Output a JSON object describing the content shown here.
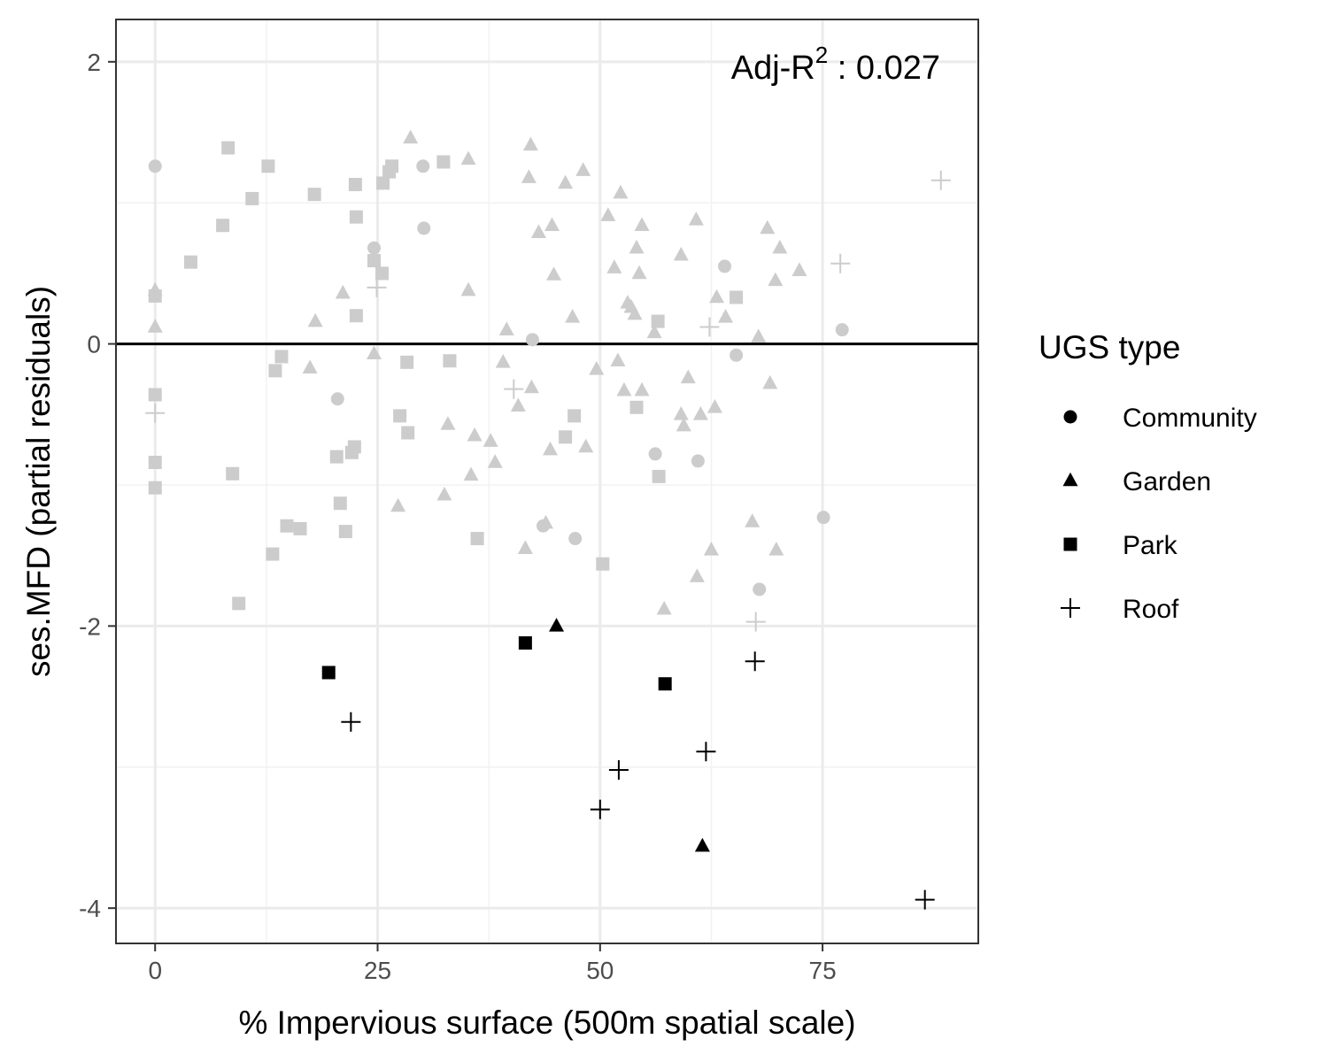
{
  "chart_data": {
    "type": "scatter",
    "xlabel": "% Impervious surface (500m spatial scale)",
    "ylabel": "ses.MFD (partial residuals)",
    "xlim": [
      -4.4,
      92.5
    ],
    "ylim": [
      -4.25,
      2.3
    ],
    "xticks": [
      0,
      25,
      50,
      75
    ],
    "yticks": [
      -4,
      -2,
      0,
      2
    ],
    "grid": true,
    "hline": 0,
    "annotation": {
      "prefix": "Adj-R",
      "sup": "2",
      "suffix": " : 0.027"
    },
    "legend": {
      "title": "UGS type",
      "position": "right",
      "entries": [
        {
          "label": "Community",
          "shape": "circle"
        },
        {
          "label": "Garden",
          "shape": "triangle"
        },
        {
          "label": "Park",
          "shape": "square"
        },
        {
          "label": "Roof",
          "shape": "cross"
        }
      ]
    },
    "colors": {
      "highlighted": "#000000",
      "background": "#cccccc"
    },
    "series": [
      {
        "name": "Community",
        "shape": "circle",
        "points": [
          {
            "x": 0,
            "y": 1.26,
            "hl": false
          },
          {
            "x": 24.6,
            "y": 0.68,
            "hl": false
          },
          {
            "x": 30.1,
            "y": 1.26,
            "hl": false
          },
          {
            "x": 30.2,
            "y": 0.82,
            "hl": false
          },
          {
            "x": 42.4,
            "y": 0.03,
            "hl": false
          },
          {
            "x": 20.5,
            "y": -0.39,
            "hl": false
          },
          {
            "x": 43.6,
            "y": -1.29,
            "hl": false
          },
          {
            "x": 47.2,
            "y": -1.38,
            "hl": false
          },
          {
            "x": 56.2,
            "y": -0.78,
            "hl": false
          },
          {
            "x": 61.0,
            "y": -0.83,
            "hl": false
          },
          {
            "x": 64.0,
            "y": 0.55,
            "hl": false
          },
          {
            "x": 65.3,
            "y": -0.08,
            "hl": false
          },
          {
            "x": 67.9,
            "y": -1.74,
            "hl": false
          },
          {
            "x": 75.1,
            "y": -1.23,
            "hl": false
          },
          {
            "x": 77.2,
            "y": 0.1,
            "hl": false
          }
        ]
      },
      {
        "name": "Garden",
        "shape": "triangle",
        "points": [
          {
            "x": 0,
            "y": 0.38,
            "hl": false
          },
          {
            "x": 0,
            "y": 0.12,
            "hl": false
          },
          {
            "x": 17.4,
            "y": -0.17,
            "hl": false
          },
          {
            "x": 18.0,
            "y": 0.16,
            "hl": false
          },
          {
            "x": 21.1,
            "y": 0.36,
            "hl": false
          },
          {
            "x": 24.6,
            "y": -0.07,
            "hl": false
          },
          {
            "x": 27.3,
            "y": -1.15,
            "hl": false
          },
          {
            "x": 28.7,
            "y": 1.46,
            "hl": false
          },
          {
            "x": 32.5,
            "y": -1.07,
            "hl": false
          },
          {
            "x": 32.9,
            "y": -0.57,
            "hl": false
          },
          {
            "x": 35.2,
            "y": 1.31,
            "hl": false
          },
          {
            "x": 35.2,
            "y": 0.38,
            "hl": false
          },
          {
            "x": 35.5,
            "y": -0.93,
            "hl": false
          },
          {
            "x": 35.9,
            "y": -0.65,
            "hl": false
          },
          {
            "x": 37.7,
            "y": -0.69,
            "hl": false
          },
          {
            "x": 38.2,
            "y": -0.84,
            "hl": false
          },
          {
            "x": 39.1,
            "y": -0.13,
            "hl": false
          },
          {
            "x": 39.5,
            "y": 0.1,
            "hl": false
          },
          {
            "x": 40.8,
            "y": -0.44,
            "hl": false
          },
          {
            "x": 41.6,
            "y": -1.45,
            "hl": false
          },
          {
            "x": 42.0,
            "y": 1.18,
            "hl": false
          },
          {
            "x": 42.2,
            "y": 1.41,
            "hl": false
          },
          {
            "x": 42.3,
            "y": -0.31,
            "hl": false
          },
          {
            "x": 43.1,
            "y": 0.79,
            "hl": false
          },
          {
            "x": 43.9,
            "y": -1.27,
            "hl": false
          },
          {
            "x": 44.4,
            "y": -0.75,
            "hl": false
          },
          {
            "x": 44.6,
            "y": 0.84,
            "hl": false
          },
          {
            "x": 44.8,
            "y": 0.49,
            "hl": false
          },
          {
            "x": 46.1,
            "y": 1.14,
            "hl": false
          },
          {
            "x": 46.9,
            "y": 0.19,
            "hl": false
          },
          {
            "x": 48.1,
            "y": 1.23,
            "hl": false
          },
          {
            "x": 48.4,
            "y": -0.73,
            "hl": false
          },
          {
            "x": 49.6,
            "y": -0.18,
            "hl": false
          },
          {
            "x": 50.9,
            "y": 0.91,
            "hl": false
          },
          {
            "x": 51.6,
            "y": 0.54,
            "hl": false
          },
          {
            "x": 52.0,
            "y": -0.12,
            "hl": false
          },
          {
            "x": 52.3,
            "y": 1.07,
            "hl": false
          },
          {
            "x": 52.7,
            "y": -0.33,
            "hl": false
          },
          {
            "x": 53.1,
            "y": 0.29,
            "hl": false
          },
          {
            "x": 53.5,
            "y": 0.26,
            "hl": false
          },
          {
            "x": 53.9,
            "y": 0.21,
            "hl": false
          },
          {
            "x": 54.1,
            "y": 0.68,
            "hl": false
          },
          {
            "x": 54.4,
            "y": 0.5,
            "hl": false
          },
          {
            "x": 54.7,
            "y": 0.84,
            "hl": false
          },
          {
            "x": 54.7,
            "y": -0.33,
            "hl": false
          },
          {
            "x": 56.1,
            "y": 0.08,
            "hl": false
          },
          {
            "x": 57.2,
            "y": -1.88,
            "hl": false
          },
          {
            "x": 59.1,
            "y": 0.63,
            "hl": false
          },
          {
            "x": 59.1,
            "y": -0.5,
            "hl": false
          },
          {
            "x": 59.4,
            "y": -0.58,
            "hl": false
          },
          {
            "x": 59.9,
            "y": -0.24,
            "hl": false
          },
          {
            "x": 60.8,
            "y": 0.88,
            "hl": false
          },
          {
            "x": 60.9,
            "y": -1.65,
            "hl": false
          },
          {
            "x": 61.3,
            "y": -0.5,
            "hl": false
          },
          {
            "x": 62.5,
            "y": -1.46,
            "hl": false
          },
          {
            "x": 62.9,
            "y": -0.45,
            "hl": false
          },
          {
            "x": 63.1,
            "y": 0.33,
            "hl": false
          },
          {
            "x": 64.1,
            "y": 0.19,
            "hl": false
          },
          {
            "x": 67.1,
            "y": -1.26,
            "hl": false
          },
          {
            "x": 67.8,
            "y": 0.05,
            "hl": false
          },
          {
            "x": 68.8,
            "y": 0.82,
            "hl": false
          },
          {
            "x": 69.1,
            "y": -0.28,
            "hl": false
          },
          {
            "x": 69.7,
            "y": 0.45,
            "hl": false
          },
          {
            "x": 69.8,
            "y": -1.46,
            "hl": false
          },
          {
            "x": 70.2,
            "y": 0.68,
            "hl": false
          },
          {
            "x": 72.4,
            "y": 0.52,
            "hl": false
          },
          {
            "x": 45.1,
            "y": -2.0,
            "hl": true
          },
          {
            "x": 61.5,
            "y": -3.56,
            "hl": true
          }
        ]
      },
      {
        "name": "Park",
        "shape": "square",
        "points": [
          {
            "x": 0,
            "y": 0.34,
            "hl": false
          },
          {
            "x": 0,
            "y": -0.36,
            "hl": false
          },
          {
            "x": 0,
            "y": -0.84,
            "hl": false
          },
          {
            "x": 0,
            "y": -1.02,
            "hl": false
          },
          {
            "x": 4.0,
            "y": 0.58,
            "hl": false
          },
          {
            "x": 7.6,
            "y": 0.84,
            "hl": false
          },
          {
            "x": 8.2,
            "y": 1.39,
            "hl": false
          },
          {
            "x": 8.7,
            "y": -0.92,
            "hl": false
          },
          {
            "x": 9.4,
            "y": -1.84,
            "hl": false
          },
          {
            "x": 10.9,
            "y": 1.03,
            "hl": false
          },
          {
            "x": 12.7,
            "y": 1.26,
            "hl": false
          },
          {
            "x": 13.2,
            "y": -1.49,
            "hl": false
          },
          {
            "x": 13.5,
            "y": -0.19,
            "hl": false
          },
          {
            "x": 14.2,
            "y": -0.09,
            "hl": false
          },
          {
            "x": 14.8,
            "y": -1.29,
            "hl": false
          },
          {
            "x": 16.3,
            "y": -1.31,
            "hl": false
          },
          {
            "x": 17.9,
            "y": 1.06,
            "hl": false
          },
          {
            "x": 20.4,
            "y": -0.8,
            "hl": false
          },
          {
            "x": 20.8,
            "y": -1.13,
            "hl": false
          },
          {
            "x": 21.4,
            "y": -1.33,
            "hl": false
          },
          {
            "x": 22.1,
            "y": -0.77,
            "hl": false
          },
          {
            "x": 22.4,
            "y": -0.73,
            "hl": false
          },
          {
            "x": 22.5,
            "y": 1.13,
            "hl": false
          },
          {
            "x": 22.6,
            "y": 0.9,
            "hl": false
          },
          {
            "x": 22.6,
            "y": 0.2,
            "hl": false
          },
          {
            "x": 24.6,
            "y": 0.59,
            "hl": false
          },
          {
            "x": 25.5,
            "y": 0.5,
            "hl": false
          },
          {
            "x": 25.6,
            "y": 1.14,
            "hl": false
          },
          {
            "x": 26.3,
            "y": 1.22,
            "hl": false
          },
          {
            "x": 26.6,
            "y": 1.26,
            "hl": false
          },
          {
            "x": 27.5,
            "y": -0.51,
            "hl": false
          },
          {
            "x": 28.3,
            "y": -0.13,
            "hl": false
          },
          {
            "x": 28.4,
            "y": -0.63,
            "hl": false
          },
          {
            "x": 32.4,
            "y": 1.29,
            "hl": false
          },
          {
            "x": 33.1,
            "y": -0.12,
            "hl": false
          },
          {
            "x": 36.2,
            "y": -1.38,
            "hl": false
          },
          {
            "x": 46.1,
            "y": -0.66,
            "hl": false
          },
          {
            "x": 47.1,
            "y": -0.51,
            "hl": false
          },
          {
            "x": 50.3,
            "y": -1.56,
            "hl": false
          },
          {
            "x": 54.1,
            "y": -0.45,
            "hl": false
          },
          {
            "x": 56.5,
            "y": 0.16,
            "hl": false
          },
          {
            "x": 56.6,
            "y": -0.94,
            "hl": false
          },
          {
            "x": 65.3,
            "y": 0.33,
            "hl": false
          },
          {
            "x": 19.5,
            "y": -2.33,
            "hl": true
          },
          {
            "x": 41.6,
            "y": -2.12,
            "hl": true
          },
          {
            "x": 57.3,
            "y": -2.41,
            "hl": true
          }
        ]
      },
      {
        "name": "Roof",
        "shape": "cross",
        "points": [
          {
            "x": 0,
            "y": -0.49,
            "hl": false
          },
          {
            "x": 24.9,
            "y": 0.4,
            "hl": false
          },
          {
            "x": 40.3,
            "y": -0.32,
            "hl": false
          },
          {
            "x": 62.3,
            "y": 0.12,
            "hl": false
          },
          {
            "x": 67.5,
            "y": -1.97,
            "hl": false
          },
          {
            "x": 77.0,
            "y": 0.57,
            "hl": false
          },
          {
            "x": 88.3,
            "y": 1.16,
            "hl": false
          },
          {
            "x": 22.0,
            "y": -2.68,
            "hl": true
          },
          {
            "x": 50.0,
            "y": -3.3,
            "hl": true
          },
          {
            "x": 52.1,
            "y": -3.02,
            "hl": true
          },
          {
            "x": 61.9,
            "y": -2.89,
            "hl": true
          },
          {
            "x": 67.4,
            "y": -2.25,
            "hl": true
          },
          {
            "x": 86.5,
            "y": -3.94,
            "hl": true
          }
        ]
      }
    ]
  }
}
